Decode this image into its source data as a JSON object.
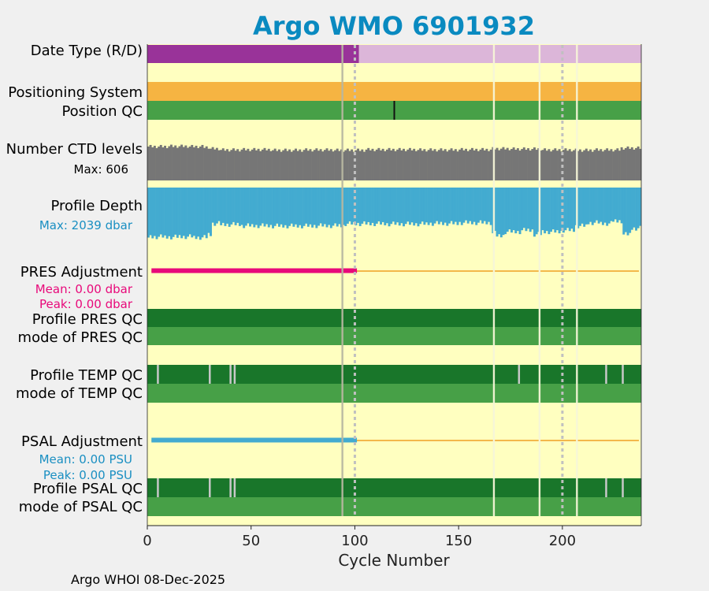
{
  "chart_data": {
    "type": "bar",
    "title": "Argo WMO 6901932",
    "xlabel": "Cycle Number",
    "xlim": [
      0,
      238
    ],
    "xticks": [
      0,
      50,
      100,
      150,
      200
    ],
    "footer": "Argo WHOI 08-Dec-2025",
    "colors": {
      "background": "#ffffc0",
      "title": "#0a8ac0",
      "delayed": "#993399",
      "realtime": "#dcb6d9",
      "positioning": "#f6b442",
      "qc_good": "#47a047",
      "qc_dark": "#19762a",
      "ctd_gray": "#767676",
      "depth_blue": "#43abd0",
      "pres_pink": "#e8097a",
      "psal_blue": "#43abd0",
      "adj_line": "#f3b84b",
      "vline": "#c8c8c8"
    },
    "row_labels": {
      "date_type": "Date Type (R/D)",
      "positioning": "Positioning System",
      "position_qc": "Position QC",
      "ctd_levels": "Number CTD levels",
      "ctd_max": "Max: 606",
      "profile_depth": "Profile Depth",
      "depth_max": "Max: 2039 dbar",
      "pres_adj": "PRES Adjustment",
      "pres_mean": "Mean: 0.00 dbar",
      "pres_peak": "Peak: 0.00 dbar",
      "prof_pres_qc": "Profile PRES QC",
      "mode_pres_qc": "mode of PRES QC",
      "prof_temp_qc": "Profile TEMP QC",
      "mode_temp_qc": "mode of TEMP QC",
      "psal_adj": "PSAL Adjustment",
      "psal_mean": "Mean: 0.00 PSU",
      "psal_peak": "Peak: 0.00 PSU",
      "prof_psal_qc": "Profile PSAL QC",
      "mode_psal_qc": "mode of PSAL QC"
    },
    "delayed_mode_until_cycle": 102,
    "missing_cycles": [
      94,
      167,
      189,
      207
    ],
    "dotted_reference_cycles": [
      100,
      200
    ],
    "position_qc_flag_cycles": [
      119
    ],
    "temp_qc_light_cycles": [
      5,
      30,
      40,
      42,
      179,
      221,
      229
    ],
    "psal_qc_light_cycles": [
      5,
      30,
      40,
      42,
      221,
      229
    ],
    "pres_adjustment_thick_until_cycle": 101,
    "psal_adjustment_thick_until_cycle": 101,
    "ctd_levels_segments": [
      [
        1,
        10,
        555
      ],
      [
        11,
        20,
        560
      ],
      [
        21,
        27,
        555
      ],
      [
        28,
        30,
        545
      ],
      [
        31,
        35,
        520
      ],
      [
        36,
        45,
        500
      ],
      [
        46,
        60,
        505
      ],
      [
        61,
        75,
        495
      ],
      [
        76,
        90,
        500
      ],
      [
        91,
        105,
        495
      ],
      [
        106,
        130,
        505
      ],
      [
        131,
        150,
        500
      ],
      [
        151,
        166,
        505
      ],
      [
        167,
        175,
        520
      ],
      [
        176,
        190,
        515
      ],
      [
        191,
        205,
        500
      ],
      [
        206,
        215,
        495
      ],
      [
        216,
        228,
        500
      ],
      [
        229,
        238,
        530
      ]
    ],
    "profile_depth_segments": [
      [
        1,
        8,
        1960
      ],
      [
        9,
        15,
        1970
      ],
      [
        16,
        22,
        1955
      ],
      [
        23,
        29,
        1985
      ],
      [
        30,
        31,
        1870
      ],
      [
        32,
        35,
        1430
      ],
      [
        36,
        45,
        1470
      ],
      [
        46,
        60,
        1520
      ],
      [
        61,
        80,
        1530
      ],
      [
        81,
        95,
        1520
      ],
      [
        96,
        115,
        1440
      ],
      [
        116,
        135,
        1450
      ],
      [
        136,
        150,
        1430
      ],
      [
        151,
        166,
        1400
      ],
      [
        167,
        168,
        1820
      ],
      [
        169,
        172,
        1920
      ],
      [
        173,
        180,
        1760
      ],
      [
        181,
        186,
        1700
      ],
      [
        187,
        190,
        1860
      ],
      [
        191,
        200,
        1760
      ],
      [
        201,
        206,
        1700
      ],
      [
        207,
        212,
        1530
      ],
      [
        213,
        218,
        1400
      ],
      [
        219,
        224,
        1430
      ],
      [
        225,
        229,
        1330
      ],
      [
        230,
        233,
        1870
      ],
      [
        234,
        238,
        1620
      ]
    ]
  }
}
